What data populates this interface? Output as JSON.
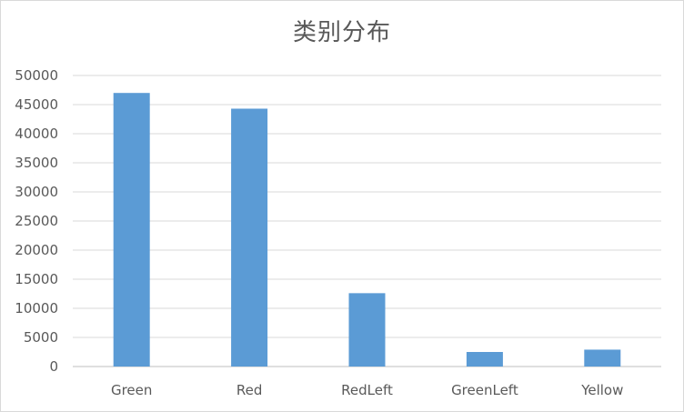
{
  "chart_data": {
    "type": "bar",
    "title": "类别分布",
    "categories": [
      "Green",
      "Red",
      "RedLeft",
      "GreenLeft",
      "Yellow"
    ],
    "values": [
      47000,
      44300,
      12600,
      2500,
      2900
    ],
    "ylim": [
      0,
      50000
    ],
    "yticks": [
      "0",
      "5000",
      "10000",
      "15000",
      "20000",
      "25000",
      "30000",
      "35000",
      "40000",
      "45000",
      "50000"
    ],
    "grid": true,
    "legend": "none",
    "colors": {
      "bar": "#5b9bd5",
      "grid": "#d9d9d9",
      "axis": "#bfbfbf",
      "text": "#595959"
    }
  }
}
